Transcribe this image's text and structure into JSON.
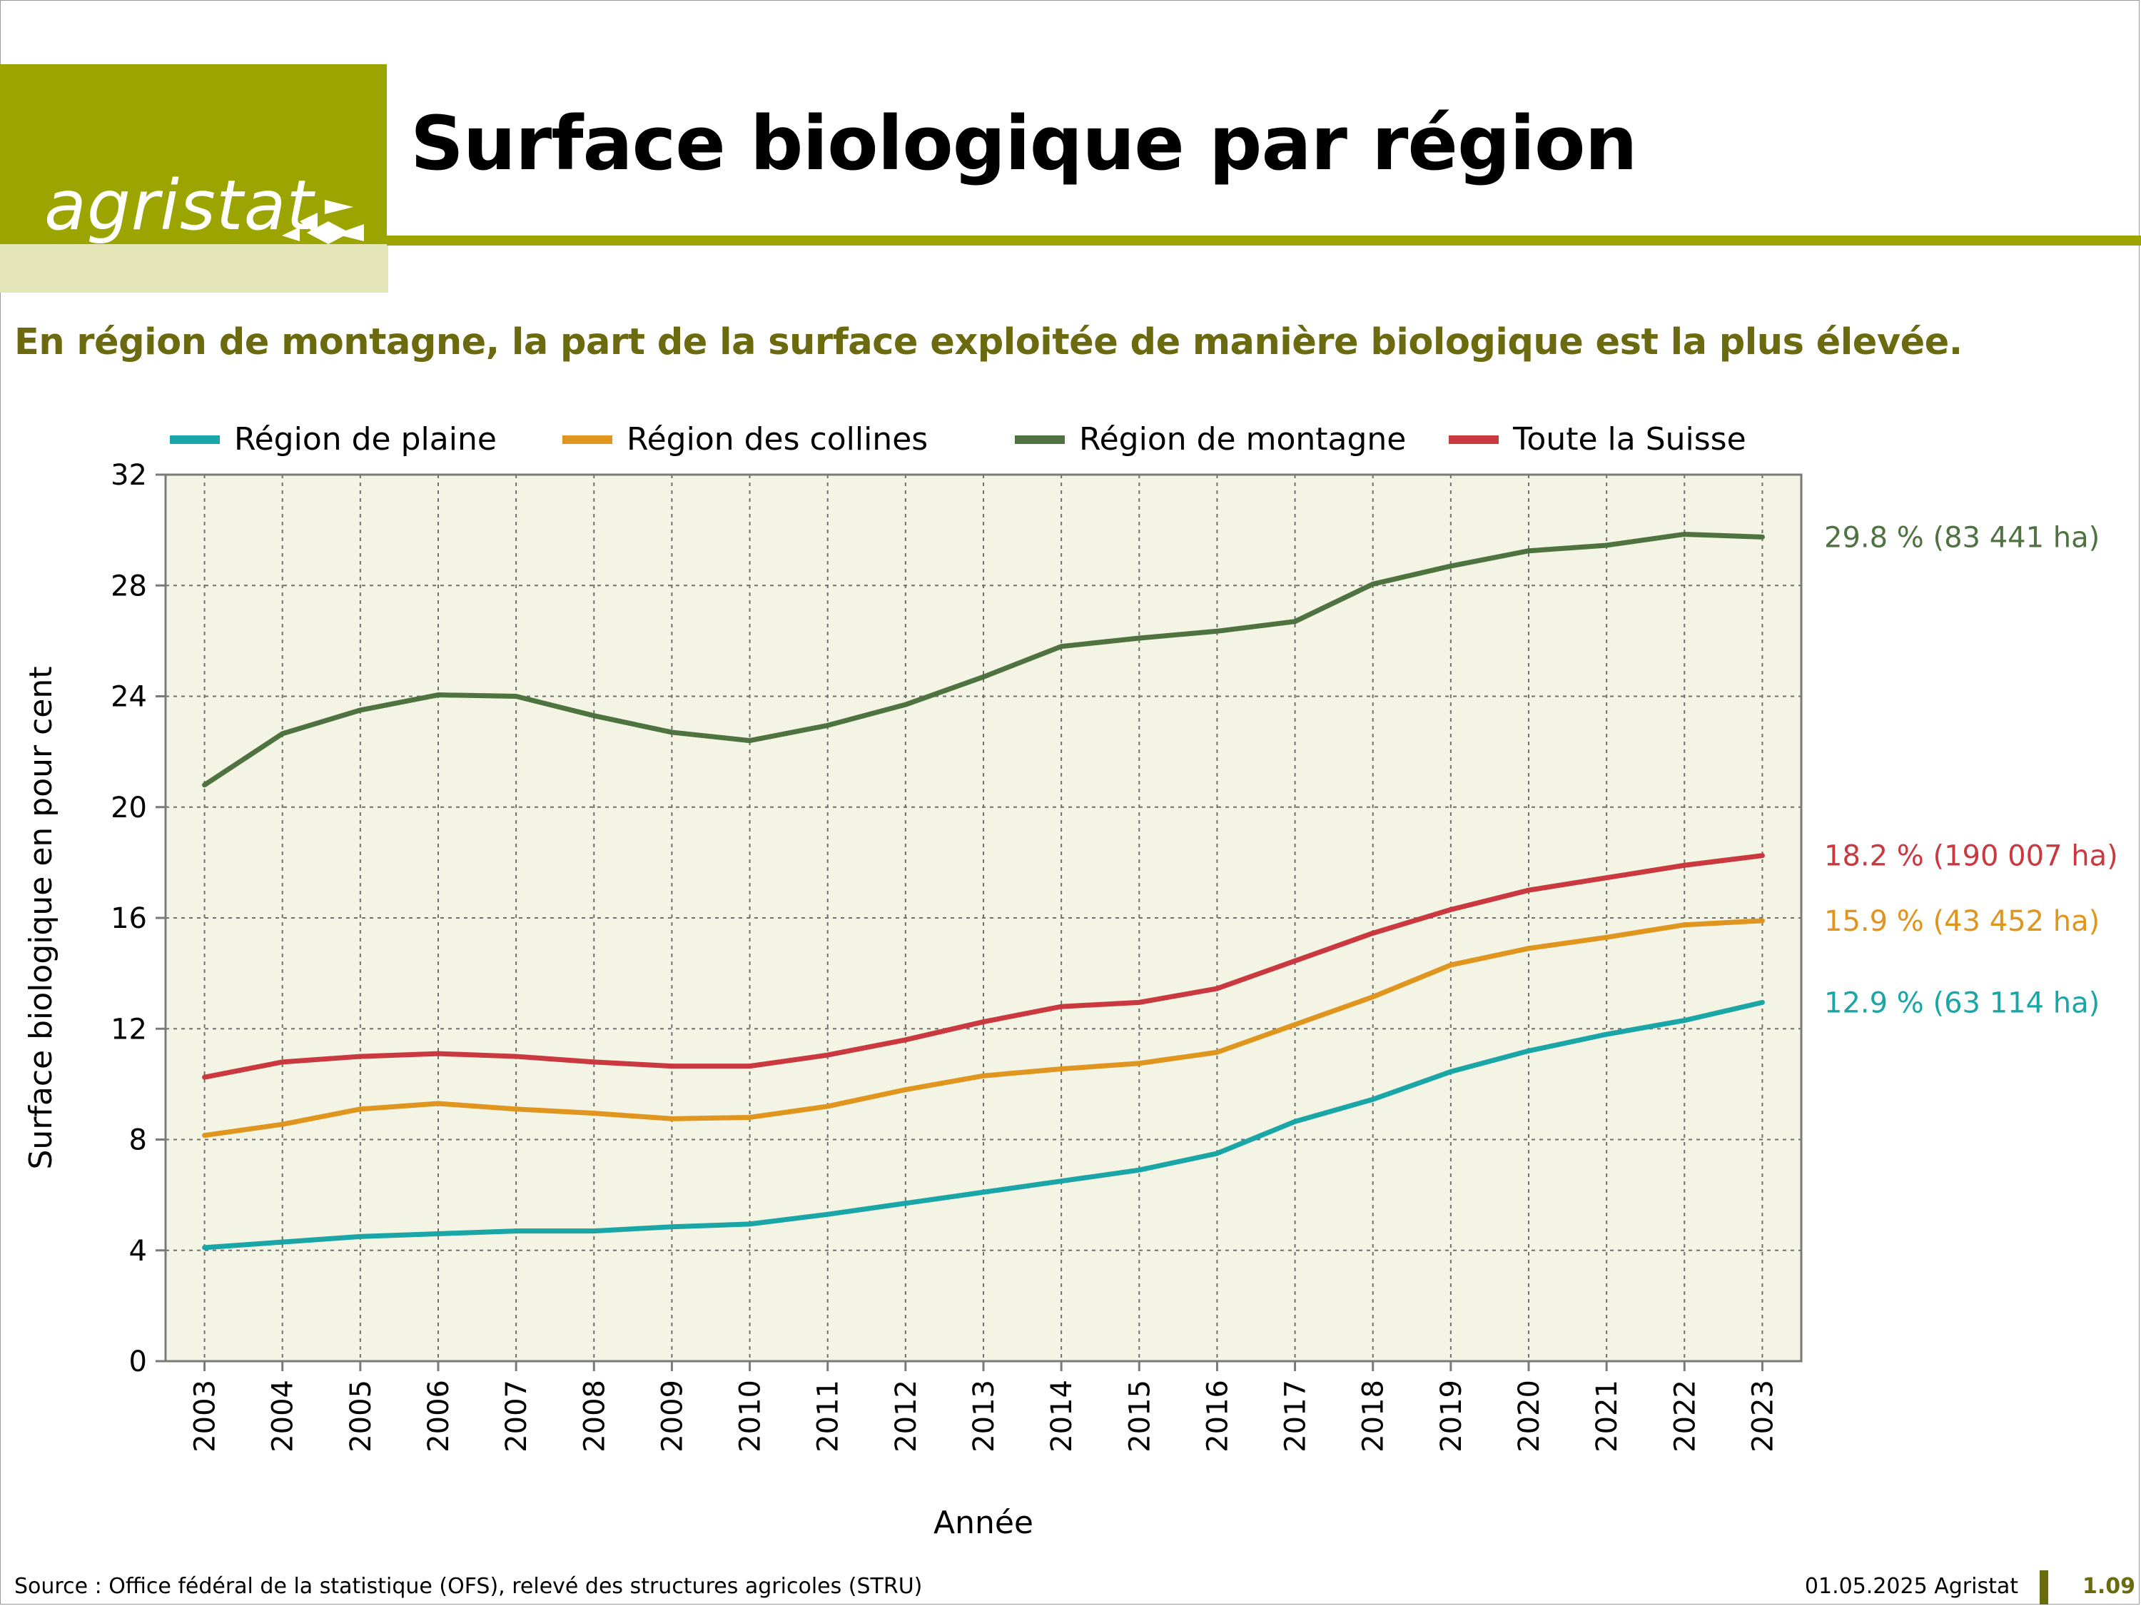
{
  "header": {
    "logo_text": "agristat",
    "title": "Surface biologique par région",
    "subtitle": "En région de montagne, la part de la surface exploitée de manière biologique est la plus élevée."
  },
  "footer": {
    "source": "Source : Office fédéral de la statistique (OFS), relevé des structures agricoles (STRU)",
    "date": "01.05.2025 Agristat",
    "page": "1.09"
  },
  "colors": {
    "brand": "#9ca400",
    "brand_light": "#e4e6b8",
    "text_accent": "#6b6a0e",
    "plot_bg": "#f3f4e3"
  },
  "chart_data": {
    "type": "line",
    "xlabel": "Année",
    "ylabel": "Surface biologique en pour cent",
    "ylim": [
      0,
      32
    ],
    "yticks": [
      0,
      4,
      8,
      12,
      16,
      20,
      24,
      28,
      32
    ],
    "grid": true,
    "legend_position": "top",
    "x": [
      "2003",
      "2004",
      "2005",
      "2006",
      "2007",
      "2008",
      "2009",
      "2010",
      "2011",
      "2012",
      "2013",
      "2014",
      "2015",
      "2016",
      "2017",
      "2018",
      "2019",
      "2020",
      "2021",
      "2022",
      "2023"
    ],
    "series": [
      {
        "name": "Région de plaine",
        "color": "#1aa6a6",
        "values": [
          4.1,
          4.3,
          4.5,
          4.6,
          4.7,
          4.7,
          4.85,
          4.95,
          5.3,
          5.7,
          6.1,
          6.5,
          6.9,
          7.5,
          8.65,
          9.45,
          10.45,
          11.2,
          11.8,
          12.3,
          12.95
        ],
        "end_label": "12.9 % (63 114 ha)"
      },
      {
        "name": "Région des collines",
        "color": "#e0951e",
        "values": [
          8.15,
          8.55,
          9.1,
          9.3,
          9.1,
          8.95,
          8.75,
          8.8,
          9.2,
          9.8,
          10.3,
          10.55,
          10.75,
          11.15,
          12.15,
          13.15,
          14.3,
          14.9,
          15.3,
          15.75,
          15.9
        ],
        "end_label": "15.9 % (43 452 ha)"
      },
      {
        "name": "Région de montagne",
        "color": "#4e7240",
        "values": [
          20.8,
          22.65,
          23.5,
          24.05,
          24.0,
          23.3,
          22.7,
          22.4,
          22.95,
          23.7,
          24.7,
          25.8,
          26.1,
          26.35,
          26.7,
          28.05,
          28.7,
          29.25,
          29.45,
          29.85,
          29.75
        ],
        "end_label": "29.8 % (83 441 ha)"
      },
      {
        "name": "Toute la Suisse",
        "color": "#c9393f",
        "values": [
          10.25,
          10.8,
          11.0,
          11.1,
          11.0,
          10.8,
          10.65,
          10.65,
          11.05,
          11.6,
          12.25,
          12.8,
          12.95,
          13.45,
          14.45,
          15.45,
          16.3,
          17.0,
          17.45,
          17.9,
          18.25
        ],
        "end_label": "18.2 % (190 007 ha)"
      }
    ]
  }
}
